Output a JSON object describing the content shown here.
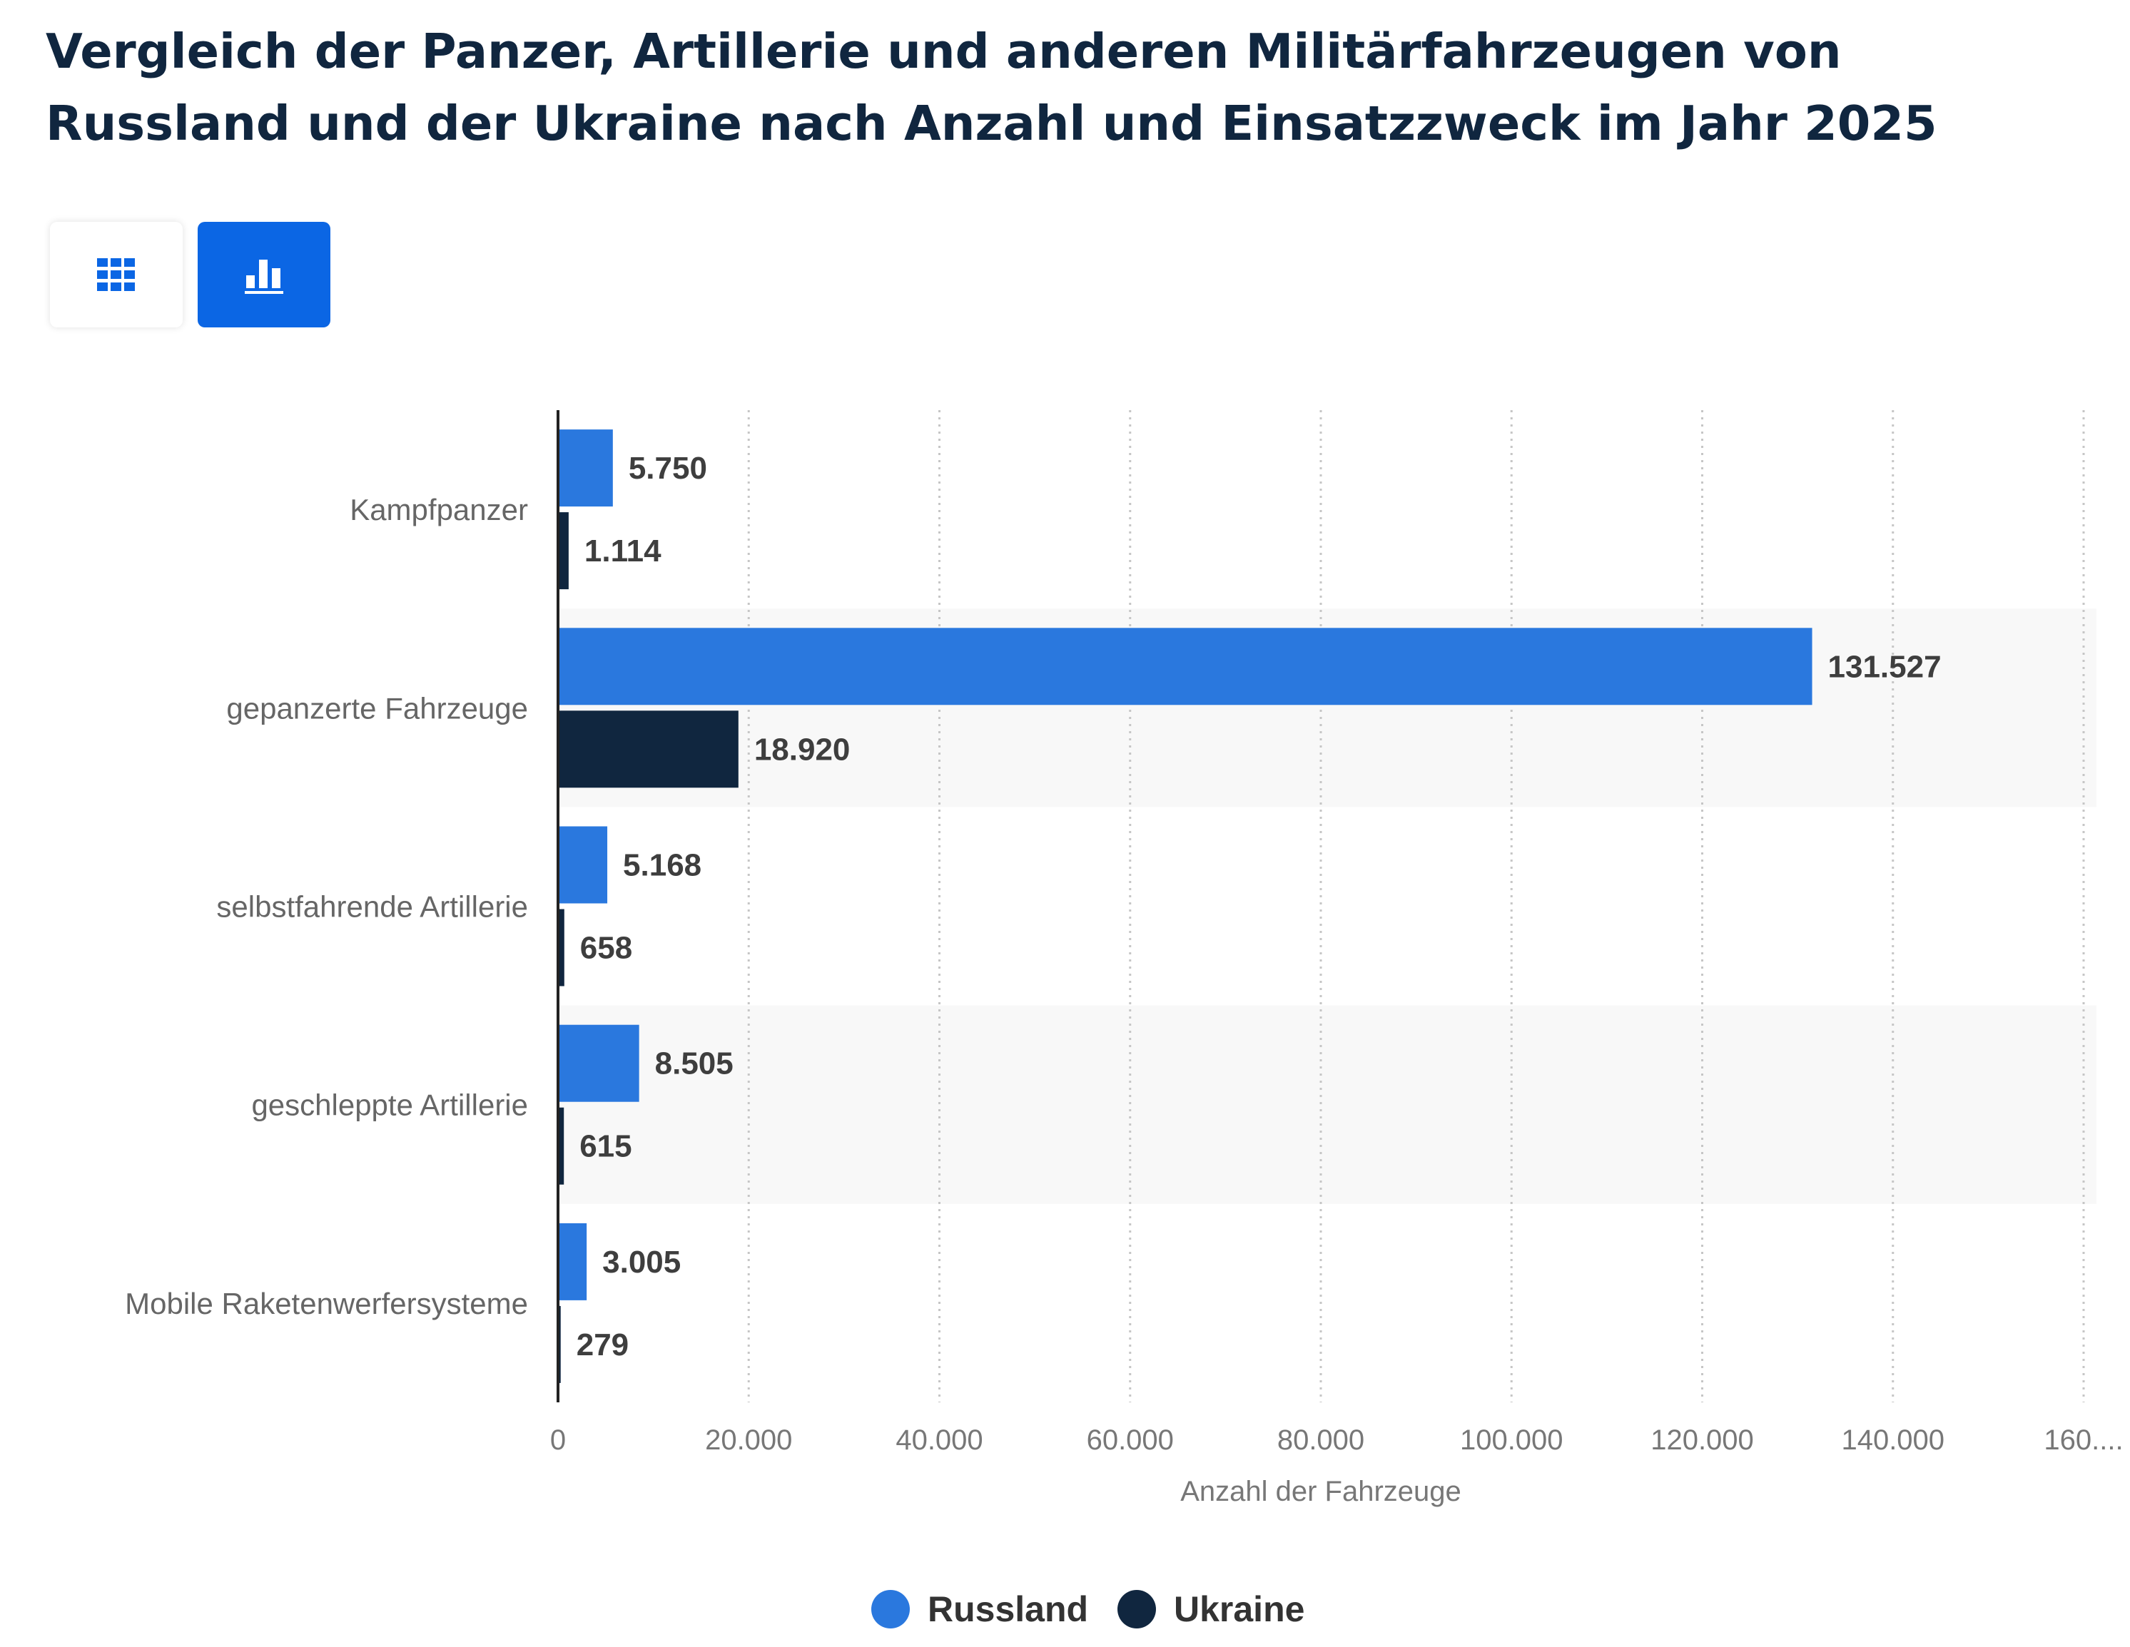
{
  "title": "Vergleich der Panzer, Artillerie und anderen Militärfahrzeugen von Russland und der Ukraine nach Anzahl und Einsatzzweck im Jahr 2025",
  "view_toggle": {
    "table_icon": "table-grid-icon",
    "chart_icon": "bar-chart-icon",
    "active": "chart"
  },
  "colors": {
    "title": "#10263f",
    "Russland": "#2a78de",
    "Ukraine": "#10263f",
    "toggle_active": "#0b66e4",
    "band": "#f8f8f8",
    "grid": "#c6c6c6"
  },
  "chart_data": {
    "type": "bar",
    "orientation": "horizontal",
    "categories": [
      "Kampfpanzer",
      "gepanzerte Fahrzeuge",
      "selbstfahrende Artillerie",
      "geschleppte Artillerie",
      "Mobile Raketenwerfersysteme"
    ],
    "series": [
      {
        "name": "Russland",
        "values": [
          5750,
          131527,
          5168,
          8505,
          3005
        ],
        "labels": [
          "5.750",
          "131.527",
          "5.168",
          "8.505",
          "3.005"
        ]
      },
      {
        "name": "Ukraine",
        "values": [
          1114,
          18920,
          658,
          615,
          279
        ],
        "labels": [
          "1.114",
          "18.920",
          "658",
          "615",
          "279"
        ]
      }
    ],
    "xlabel": "Anzahl der Fahrzeuge",
    "ylabel": "",
    "xlim": [
      0,
      160000
    ],
    "ticks": [
      0,
      20000,
      40000,
      60000,
      80000,
      100000,
      120000,
      140000,
      160000
    ],
    "tick_labels": [
      "0",
      "20.000",
      "40.000",
      "60.000",
      "80.000",
      "100.000",
      "120.000",
      "140.000",
      "160...."
    ],
    "grid": "vertical dotted",
    "legend": "bottom-center"
  }
}
